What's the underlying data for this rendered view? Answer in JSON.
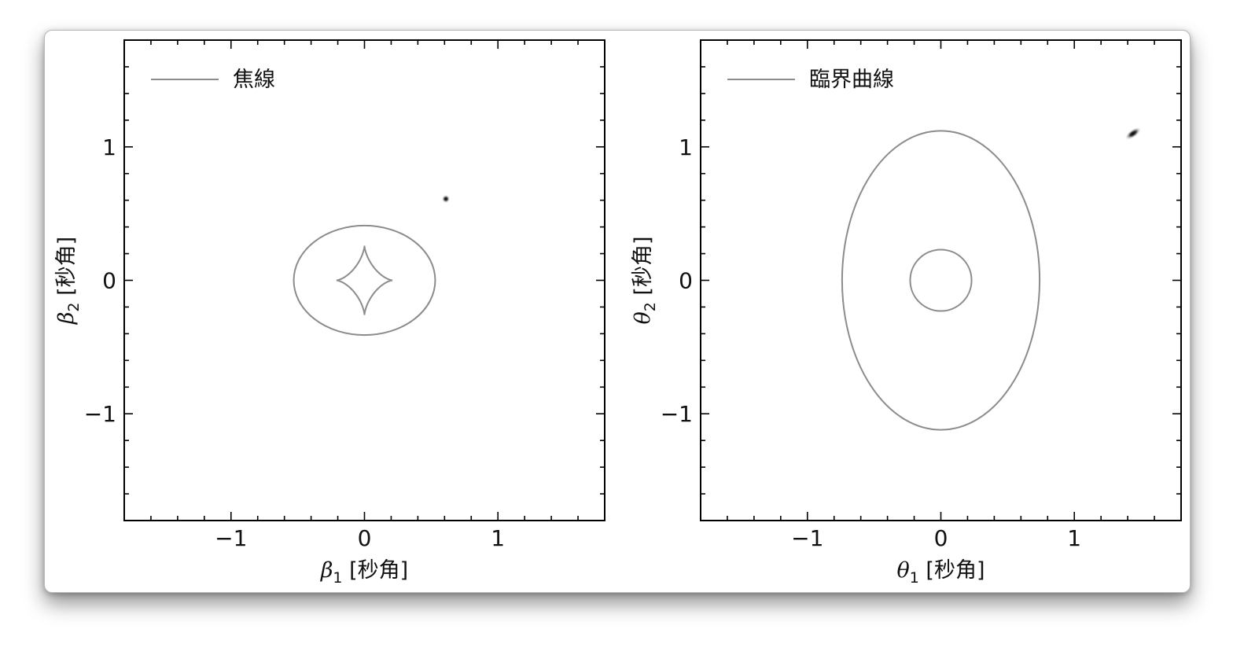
{
  "chart_data": [
    {
      "type": "line",
      "legend": {
        "entries": [
          "焦線"
        ],
        "placement": "top-left",
        "color": "#8c8c8c"
      },
      "xlabel": {
        "symbol": "β",
        "sub": "1",
        "unit": " [秒角]"
      },
      "ylabel": {
        "symbol": "β",
        "sub": "2",
        "unit": " [秒角]"
      },
      "xlim": [
        -1.8,
        1.8
      ],
      "ylim": [
        -1.8,
        1.8
      ],
      "xticks": [
        -1,
        0,
        1
      ],
      "yticks": [
        -1,
        0,
        1
      ],
      "xticklabels": [
        "−1",
        "0",
        "1"
      ],
      "yticklabels": [
        "−1",
        "0",
        "1"
      ],
      "minor_tick_step": 0.2,
      "grid": false,
      "series": [
        {
          "kind": "ellipse",
          "center": [
            0,
            0
          ],
          "rx": 0.53,
          "ry": 0.41,
          "color": "#8c8c8c"
        },
        {
          "kind": "astroid",
          "center": [
            0,
            0
          ],
          "ax": 0.21,
          "ay": 0.26,
          "color": "#8c8c8c"
        }
      ],
      "source_point": {
        "x": 0.61,
        "y": 0.61,
        "sigma_x": 0.02,
        "sigma_y": 0.02,
        "rotation": 0
      }
    },
    {
      "type": "line",
      "legend": {
        "entries": [
          "臨界曲線"
        ],
        "placement": "top-left",
        "color": "#8c8c8c"
      },
      "xlabel": {
        "symbol": "θ",
        "sub": "1",
        "unit": " [秒角]"
      },
      "ylabel": {
        "symbol": "θ",
        "sub": "2",
        "unit": " [秒角]"
      },
      "xlim": [
        -1.8,
        1.8
      ],
      "ylim": [
        -1.8,
        1.8
      ],
      "xticks": [
        -1,
        0,
        1
      ],
      "yticks": [
        -1,
        0,
        1
      ],
      "xticklabels": [
        "−1",
        "0",
        "1"
      ],
      "yticklabels": [
        "−1",
        "0",
        "1"
      ],
      "minor_tick_step": 0.2,
      "grid": false,
      "series": [
        {
          "kind": "ellipse",
          "center": [
            0,
            0
          ],
          "rx": 0.74,
          "ry": 1.12,
          "color": "#8c8c8c"
        },
        {
          "kind": "ellipse",
          "center": [
            0,
            0
          ],
          "rx": 0.23,
          "ry": 0.23,
          "color": "#8c8c8c"
        }
      ],
      "source_point": {
        "x": 1.44,
        "y": 1.1,
        "sigma_x": 0.045,
        "sigma_y": 0.02,
        "rotation": -35
      }
    }
  ]
}
